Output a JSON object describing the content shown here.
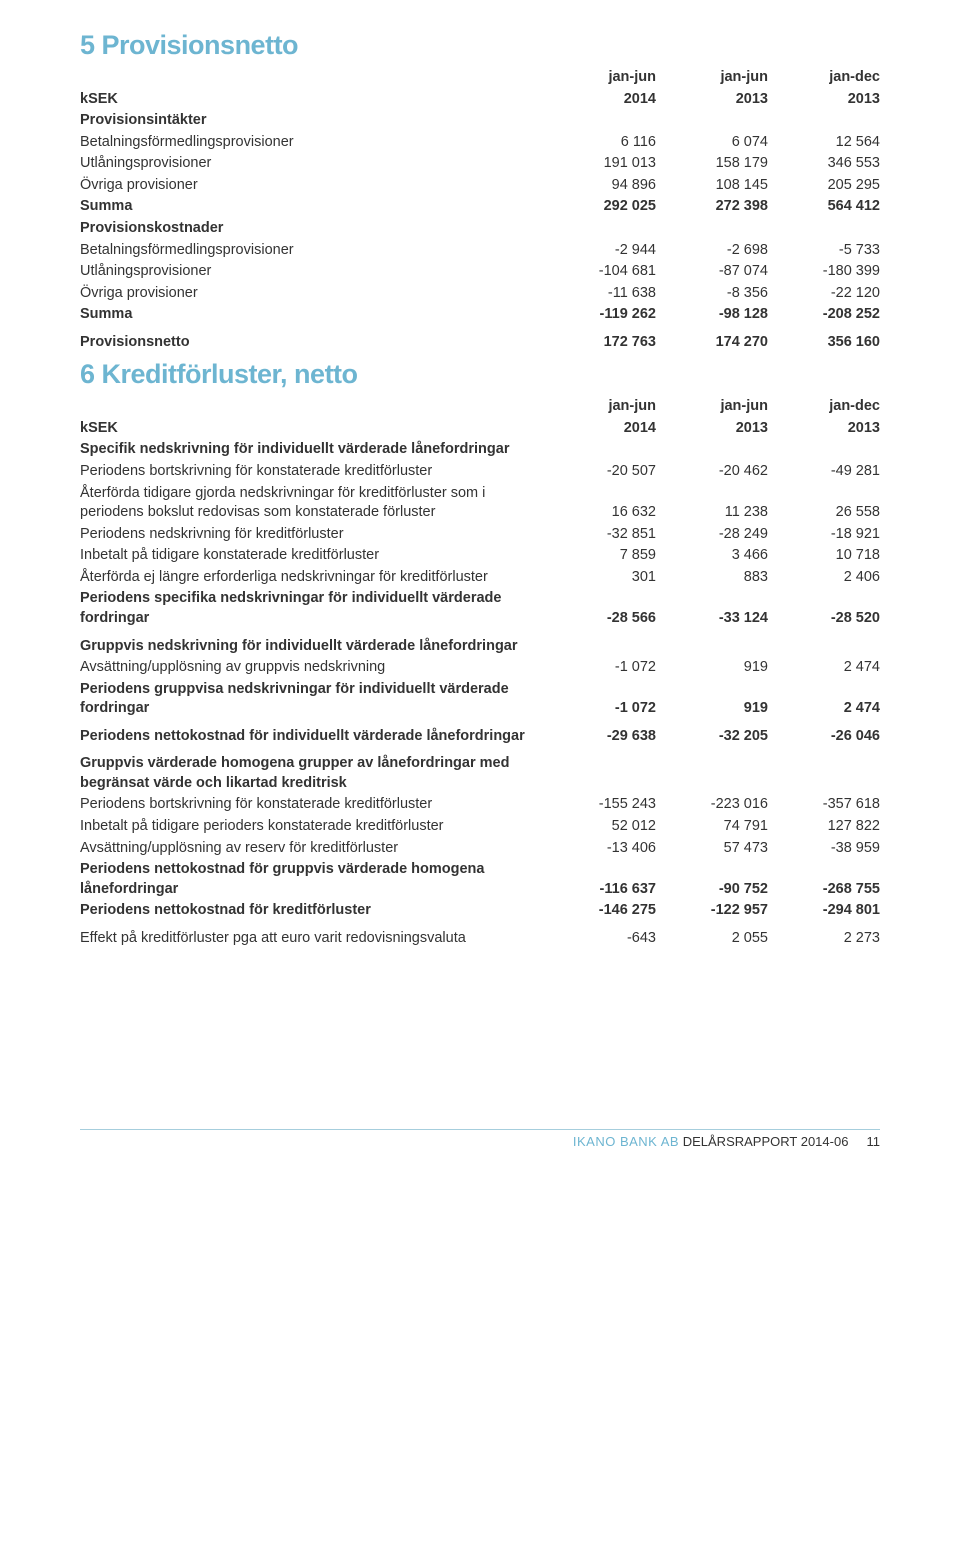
{
  "section5": {
    "title": "5 Provisionsnetto",
    "header": {
      "ksek": "kSEK",
      "p1a": "jan-jun",
      "p1b": "2014",
      "p2a": "jan-jun",
      "p2b": "2013",
      "p3a": "jan-dec",
      "p3b": "2013"
    },
    "rows": [
      {
        "label": "Provisionsintäkter",
        "bold": true,
        "v": [
          "",
          "",
          ""
        ]
      },
      {
        "label": "Betalningsförmedlingsprovisioner",
        "v": [
          "6 116",
          "6 074",
          "12 564"
        ]
      },
      {
        "label": "Utlåningsprovisioner",
        "v": [
          "191 013",
          "158 179",
          "346 553"
        ]
      },
      {
        "label": "Övriga provisioner",
        "v": [
          "94 896",
          "108 145",
          "205 295"
        ]
      },
      {
        "label": "Summa",
        "bold": true,
        "v": [
          "292 025",
          "272 398",
          "564 412"
        ]
      },
      {
        "label": "Provisionskostnader",
        "bold": true,
        "v": [
          "",
          "",
          ""
        ]
      },
      {
        "label": "Betalningsförmedlingsprovisioner",
        "v": [
          "-2 944",
          "-2 698",
          "-5 733"
        ]
      },
      {
        "label": "Utlåningsprovisioner",
        "v": [
          "-104 681",
          "-87 074",
          "-180 399"
        ]
      },
      {
        "label": "Övriga provisioner",
        "v": [
          "-11 638",
          "-8 356",
          "-22 120"
        ]
      },
      {
        "label": "Summa",
        "bold": true,
        "v": [
          "-119 262",
          "-98 128",
          "-208 252"
        ]
      },
      {
        "gap": true
      },
      {
        "label": "Provisionsnetto",
        "bold": true,
        "v": [
          "172 763",
          "174 270",
          "356 160"
        ]
      }
    ]
  },
  "section6": {
    "title": "6 Kreditförluster, netto",
    "header": {
      "ksek": "kSEK",
      "p1a": "jan-jun",
      "p1b": "2014",
      "p2a": "jan-jun",
      "p2b": "2013",
      "p3a": "jan-dec",
      "p3b": "2013"
    },
    "rows": [
      {
        "label": "Specifik nedskrivning för individuellt värderade lånefordringar",
        "bold": true,
        "v": [
          "",
          "",
          ""
        ]
      },
      {
        "label": "Periodens bortskrivning för konstaterade kreditförluster",
        "v": [
          "-20 507",
          "-20 462",
          "-49 281"
        ]
      },
      {
        "label": "Återförda tidigare gjorda nedskrivningar för kreditförluster som i periodens bokslut redovisas som konstaterade förluster",
        "v": [
          "16 632",
          "11 238",
          "26 558"
        ]
      },
      {
        "label": "Periodens nedskrivning för kreditförluster",
        "v": [
          "-32 851",
          "-28 249",
          "-18 921"
        ]
      },
      {
        "label": "Inbetalt på tidigare konstaterade kreditförluster",
        "v": [
          "7 859",
          "3 466",
          "10 718"
        ]
      },
      {
        "label": "Återförda ej längre erforderliga nedskrivningar för kreditförluster",
        "v": [
          "301",
          "883",
          "2 406"
        ]
      },
      {
        "label": "Periodens specifika nedskrivningar för individuellt värderade fordringar",
        "bold": true,
        "v": [
          "-28 566",
          "-33 124",
          "-28 520"
        ]
      },
      {
        "gap": true
      },
      {
        "label": "Gruppvis nedskrivning för individuellt värderade lånefordringar",
        "bold": true,
        "v": [
          "",
          "",
          ""
        ]
      },
      {
        "label": "Avsättning/upplösning av gruppvis nedskrivning",
        "v": [
          "-1 072",
          "919",
          "2 474"
        ]
      },
      {
        "label": "Periodens gruppvisa nedskrivningar för individuellt värderade fordringar",
        "bold": true,
        "v": [
          "-1 072",
          "919",
          "2 474"
        ]
      },
      {
        "gap": true
      },
      {
        "label": "Periodens nettokostnad för individuellt värderade lånefordringar",
        "bold": true,
        "v": [
          "-29 638",
          "-32 205",
          "-26 046"
        ]
      },
      {
        "gap": true
      },
      {
        "label": "Gruppvis värderade homogena grupper av lånefordringar med begränsat värde och likartad kreditrisk",
        "bold": true,
        "v": [
          "",
          "",
          ""
        ]
      },
      {
        "label": "Periodens bortskrivning för konstaterade kreditförluster",
        "v": [
          "-155 243",
          "-223 016",
          "-357 618"
        ]
      },
      {
        "label": "Inbetalt på tidigare perioders konstaterade kreditförluster",
        "v": [
          "52 012",
          "74 791",
          "127 822"
        ]
      },
      {
        "label": "Avsättning/upplösning av reserv för kreditförluster",
        "v": [
          "-13 406",
          "57 473",
          "-38 959"
        ]
      },
      {
        "label": "Periodens nettokostnad för gruppvis värderade homogena lånefordringar",
        "bold": true,
        "v": [
          "-116 637",
          "-90 752",
          "-268 755"
        ]
      },
      {
        "label": "Periodens nettokostnad för kreditförluster",
        "bold": true,
        "v": [
          "-146 275",
          "-122 957",
          "-294 801"
        ]
      },
      {
        "gap": true
      },
      {
        "label": "Effekt på kreditförluster pga att euro varit redovisningsvaluta",
        "v": [
          "-643",
          "2 055",
          "2 273"
        ]
      }
    ]
  },
  "footer": {
    "brand": "IKANO BANK AB",
    "doc": "DELÅRSRAPPORT 2014-06",
    "page": "11"
  },
  "colors": {
    "accent": "#6db5d1",
    "text": "#333333",
    "line": "#a6cedd"
  }
}
